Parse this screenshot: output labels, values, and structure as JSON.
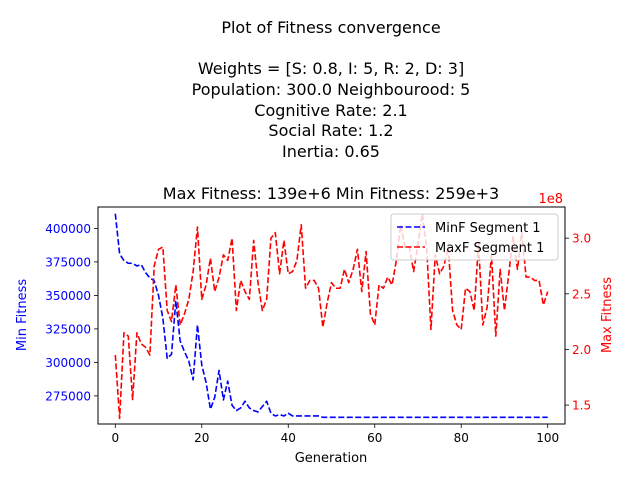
{
  "chart_data": {
    "type": "line",
    "title_lines": [
      "Plot of Fitness convergence",
      "",
      "Weights = [S: 0.8, I: 5, R: 2, D: 3]",
      "Population: 300.0  Neighbourood: 5",
      "Cognitive Rate: 2.1",
      "Social Rate: 1.2",
      "Inertia: 0.65",
      "",
      "Max Fitness: 139e+6 Min Fitness: 259e+3"
    ],
    "xlabel": "Generation",
    "ylabel_left": "Min Fitness",
    "ylabel_right": "Max Fitness",
    "right_axis_offset_label": "1e8",
    "xlim": [
      -4,
      104
    ],
    "ylim_left": [
      254000,
      416000
    ],
    "ylim_right": [
      1.33,
      3.28
    ],
    "x_ticks": [
      0,
      20,
      40,
      60,
      80,
      100
    ],
    "y_left_ticks": [
      275000,
      300000,
      325000,
      350000,
      375000,
      400000
    ],
    "y_left_tick_labels": [
      "275000",
      "300000",
      "325000",
      "350000",
      "375000",
      "400000"
    ],
    "y_right_ticks": [
      1.5,
      2.0,
      2.5,
      3.0
    ],
    "y_right_tick_labels": [
      "1.5",
      "2.0",
      "2.5",
      "3.0"
    ],
    "legend_position": "top-right",
    "series": [
      {
        "name": "MinF Segment 1",
        "axis": "left",
        "color": "#0000ff",
        "linestyle": "dashed",
        "x": [
          0,
          1,
          2,
          3,
          4,
          5,
          6,
          7,
          8,
          9,
          10,
          11,
          12,
          13,
          14,
          15,
          16,
          17,
          18,
          19,
          20,
          21,
          22,
          23,
          24,
          25,
          26,
          27,
          28,
          29,
          30,
          31,
          32,
          33,
          34,
          35,
          36,
          37,
          38,
          39,
          40,
          41,
          42,
          43,
          44,
          45,
          46,
          47,
          48,
          49,
          50,
          51,
          52,
          53,
          54,
          55,
          56,
          57,
          58,
          59,
          60,
          61,
          62,
          63,
          64,
          65,
          66,
          67,
          68,
          69,
          70,
          71,
          72,
          73,
          74,
          75,
          76,
          77,
          78,
          79,
          80,
          81,
          82,
          83,
          84,
          85,
          86,
          87,
          88,
          89,
          90,
          91,
          92,
          93,
          94,
          95,
          96,
          97,
          98,
          99,
          100
        ],
        "values": [
          411000,
          381000,
          376000,
          374000,
          374000,
          372000,
          373000,
          367000,
          363000,
          361000,
          350000,
          333000,
          303000,
          306000,
          346000,
          316000,
          308000,
          301000,
          287000,
          328000,
          298000,
          285000,
          265000,
          274000,
          294000,
          272000,
          286000,
          268000,
          264000,
          266000,
          271000,
          266000,
          264000,
          263000,
          267000,
          271000,
          262000,
          260000,
          261000,
          260000,
          262000,
          260000,
          260000,
          260000,
          260000,
          260000,
          260000,
          260000,
          259000,
          259000,
          259000,
          259000,
          259000,
          259000,
          259000,
          259000,
          259000,
          259000,
          259000,
          259000,
          259000,
          259000,
          259000,
          259000,
          259000,
          259000,
          259000,
          259000,
          259000,
          259000,
          259000,
          259000,
          259000,
          259000,
          259000,
          259000,
          259000,
          259000,
          259000,
          259000,
          259000,
          259000,
          259000,
          259000,
          259000,
          259000,
          259000,
          259000,
          259000,
          259000,
          259000,
          259000,
          259000,
          259000,
          259000,
          259000,
          259000,
          259000,
          259000,
          259000,
          259000
        ]
      },
      {
        "name": "MaxF Segment 1",
        "axis": "right",
        "color": "#ff0000",
        "linestyle": "dashed",
        "x": [
          0,
          1,
          2,
          3,
          4,
          5,
          6,
          7,
          8,
          9,
          10,
          11,
          12,
          13,
          14,
          15,
          16,
          17,
          18,
          19,
          20,
          21,
          22,
          23,
          24,
          25,
          26,
          27,
          28,
          29,
          30,
          31,
          32,
          33,
          34,
          35,
          36,
          37,
          38,
          39,
          40,
          41,
          42,
          43,
          44,
          45,
          46,
          47,
          48,
          49,
          50,
          51,
          52,
          53,
          54,
          55,
          56,
          57,
          58,
          59,
          60,
          61,
          62,
          63,
          64,
          65,
          66,
          67,
          68,
          69,
          70,
          71,
          72,
          73,
          74,
          75,
          76,
          77,
          78,
          79,
          80,
          81,
          82,
          83,
          84,
          85,
          86,
          87,
          88,
          89,
          90,
          91,
          92,
          93,
          94,
          95,
          96,
          97,
          98,
          99,
          100
        ],
        "values": [
          1.95,
          1.38,
          2.15,
          2.12,
          1.55,
          2.15,
          2.05,
          2.02,
          1.95,
          2.75,
          2.9,
          2.92,
          2.35,
          2.25,
          2.58,
          2.22,
          2.32,
          2.45,
          2.7,
          3.1,
          2.45,
          2.58,
          2.82,
          2.52,
          2.65,
          2.85,
          2.8,
          3.0,
          2.35,
          2.62,
          2.52,
          2.45,
          2.98,
          2.6,
          2.35,
          2.45,
          3.0,
          3.05,
          2.68,
          2.98,
          2.68,
          2.7,
          2.8,
          3.12,
          2.55,
          2.62,
          2.62,
          2.55,
          2.2,
          2.42,
          2.6,
          2.55,
          2.55,
          2.72,
          2.6,
          2.72,
          2.9,
          2.52,
          2.88,
          2.32,
          2.22,
          2.58,
          2.55,
          2.65,
          2.58,
          2.8,
          3.12,
          2.92,
          2.92,
          2.7,
          2.95,
          3.22,
          2.92,
          2.18,
          2.85,
          2.68,
          2.75,
          2.92,
          2.35,
          2.22,
          2.18,
          2.55,
          2.52,
          2.35,
          2.95,
          2.22,
          2.38,
          2.85,
          2.12,
          2.72,
          2.35,
          2.68,
          3.02,
          2.72,
          3.05,
          2.65,
          2.65,
          2.62,
          2.62,
          2.4,
          2.52
        ]
      }
    ]
  }
}
